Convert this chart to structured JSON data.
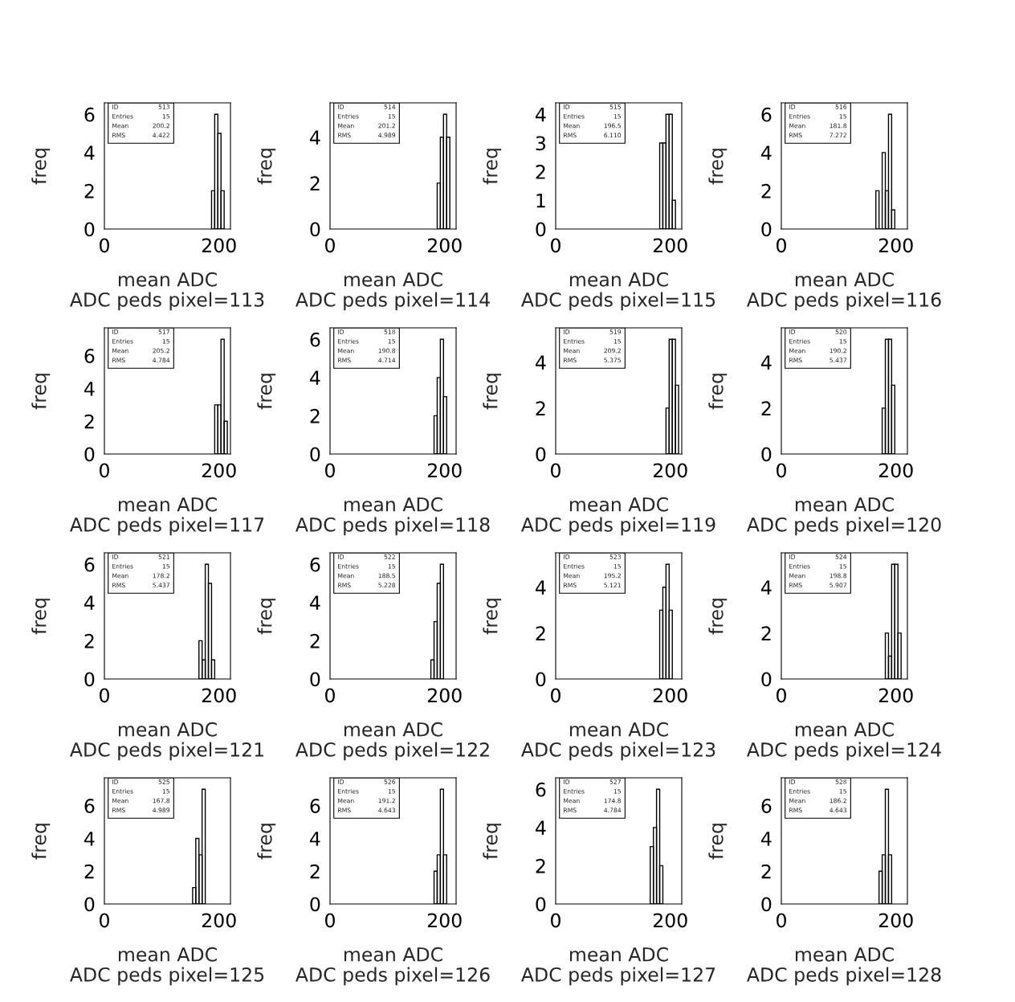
{
  "chart_data": [
    {
      "type": "histogram",
      "title": "ADC peds pixel=113",
      "xlabel": "mean ADC",
      "ylabel": "freq",
      "bins": [
        187,
        192.5,
        198,
        203.5,
        209
      ],
      "values": [
        2,
        6,
        5,
        2
      ],
      "color": "#000000",
      "xlim": [
        0,
        220
      ],
      "xticks": [
        0,
        200
      ],
      "ylim": [
        0,
        6.6
      ],
      "yticks": [
        0,
        2,
        4,
        6
      ],
      "annotations": [
        "ID",
        "513",
        "Entries",
        "15",
        "Mean",
        "200.2",
        "RMS",
        "4.422"
      ]
    },
    {
      "type": "histogram",
      "title": "ADC peds pixel=114",
      "xlabel": "mean ADC",
      "ylabel": "freq",
      "bins": [
        187,
        192.5,
        198,
        203.5,
        209
      ],
      "values": [
        2,
        4,
        5,
        4
      ],
      "color": "#000000",
      "xlim": [
        0,
        220
      ],
      "xticks": [
        0,
        200
      ],
      "ylim": [
        0,
        5.5
      ],
      "yticks": [
        0,
        2,
        4
      ],
      "annotations": [
        "ID",
        "514",
        "Entries",
        "15",
        "Mean",
        "201.2",
        "RMS",
        "4.989"
      ]
    },
    {
      "type": "histogram",
      "title": "ADC peds pixel=115",
      "xlabel": "mean ADC",
      "ylabel": "freq",
      "bins": [
        181.5,
        187,
        192.5,
        198,
        203.5,
        209
      ],
      "values": [
        3,
        3,
        4,
        4,
        1
      ],
      "color": "#000000",
      "xlim": [
        0,
        220
      ],
      "xticks": [
        0,
        200
      ],
      "ylim": [
        0,
        4.4
      ],
      "yticks": [
        0,
        1,
        2,
        3,
        4
      ],
      "annotations": [
        "ID",
        "515",
        "Entries",
        "15",
        "Mean",
        "196.5",
        "RMS",
        "6.110"
      ]
    },
    {
      "type": "histogram",
      "title": "ADC peds pixel=116",
      "xlabel": "mean ADC",
      "ylabel": "freq",
      "bins": [
        165,
        170.5,
        176,
        181.5,
        187,
        192.5,
        198
      ],
      "values": [
        2,
        0,
        4,
        2,
        6,
        1
      ],
      "color": "#000000",
      "xlim": [
        0,
        220
      ],
      "xticks": [
        0,
        200
      ],
      "ylim": [
        0,
        6.6
      ],
      "yticks": [
        0,
        2,
        4,
        6
      ],
      "annotations": [
        "ID",
        "516",
        "Entries",
        "15",
        "Mean",
        "181.8",
        "RMS",
        "7.272"
      ]
    },
    {
      "type": "histogram",
      "title": "ADC peds pixel=117",
      "xlabel": "mean ADC",
      "ylabel": "freq",
      "bins": [
        192.5,
        198,
        203.5,
        209,
        214.5
      ],
      "values": [
        3,
        3,
        7,
        2
      ],
      "color": "#000000",
      "xlim": [
        0,
        220
      ],
      "xticks": [
        0,
        200
      ],
      "ylim": [
        0,
        7.7
      ],
      "yticks": [
        0,
        2,
        4,
        6
      ],
      "annotations": [
        "ID",
        "517",
        "Entries",
        "15",
        "Mean",
        "205.2",
        "RMS",
        "4.784"
      ]
    },
    {
      "type": "histogram",
      "title": "ADC peds pixel=118",
      "xlabel": "mean ADC",
      "ylabel": "freq",
      "bins": [
        181.5,
        187,
        192.5,
        198,
        203.5
      ],
      "values": [
        2,
        4,
        6,
        3
      ],
      "color": "#000000",
      "xlim": [
        0,
        220
      ],
      "xticks": [
        0,
        200
      ],
      "ylim": [
        0,
        6.6
      ],
      "yticks": [
        0,
        2,
        4,
        6
      ],
      "annotations": [
        "ID",
        "518",
        "Entries",
        "15",
        "Mean",
        "190.8",
        "RMS",
        "4.714"
      ]
    },
    {
      "type": "histogram",
      "title": "ADC peds pixel=119",
      "xlabel": "mean ADC",
      "ylabel": "freq",
      "bins": [
        192.5,
        198,
        203.5,
        209,
        214.5
      ],
      "values": [
        2,
        5,
        5,
        3
      ],
      "color": "#000000",
      "xlim": [
        0,
        220
      ],
      "xticks": [
        0,
        200
      ],
      "ylim": [
        0,
        5.5
      ],
      "yticks": [
        0,
        2,
        4
      ],
      "annotations": [
        "ID",
        "519",
        "Entries",
        "15",
        "Mean",
        "209.2",
        "RMS",
        "5.375"
      ]
    },
    {
      "type": "histogram",
      "title": "ADC peds pixel=120",
      "xlabel": "mean ADC",
      "ylabel": "freq",
      "bins": [
        176,
        181.5,
        187,
        192.5,
        198
      ],
      "values": [
        2,
        5,
        5,
        3
      ],
      "color": "#000000",
      "xlim": [
        0,
        220
      ],
      "xticks": [
        0,
        200
      ],
      "ylim": [
        0,
        5.5
      ],
      "yticks": [
        0,
        2,
        4
      ],
      "annotations": [
        "ID",
        "520",
        "Entries",
        "15",
        "Mean",
        "190.2",
        "RMS",
        "5.437"
      ]
    },
    {
      "type": "histogram",
      "title": "ADC peds pixel=121",
      "xlabel": "mean ADC",
      "ylabel": "freq",
      "bins": [
        165,
        170.5,
        176,
        181.5,
        187,
        192.5
      ],
      "values": [
        2,
        1,
        6,
        5,
        1
      ],
      "color": "#000000",
      "xlim": [
        0,
        220
      ],
      "xticks": [
        0,
        200
      ],
      "ylim": [
        0,
        6.6
      ],
      "yticks": [
        0,
        2,
        4,
        6
      ],
      "annotations": [
        "ID",
        "521",
        "Entries",
        "15",
        "Mean",
        "178.2",
        "RMS",
        "5.437"
      ]
    },
    {
      "type": "histogram",
      "title": "ADC peds pixel=122",
      "xlabel": "mean ADC",
      "ylabel": "freq",
      "bins": [
        176,
        181.5,
        187,
        192.5,
        198
      ],
      "values": [
        1,
        3,
        5,
        6
      ],
      "color": "#000000",
      "xlim": [
        0,
        220
      ],
      "xticks": [
        0,
        200
      ],
      "ylim": [
        0,
        6.6
      ],
      "yticks": [
        0,
        2,
        4,
        6
      ],
      "annotations": [
        "ID",
        "522",
        "Entries",
        "15",
        "Mean",
        "188.5",
        "RMS",
        "5.228"
      ]
    },
    {
      "type": "histogram",
      "title": "ADC peds pixel=123",
      "xlabel": "mean ADC",
      "ylabel": "freq",
      "bins": [
        181.5,
        187,
        192.5,
        198,
        203.5
      ],
      "values": [
        3,
        4,
        5,
        3
      ],
      "color": "#000000",
      "xlim": [
        0,
        220
      ],
      "xticks": [
        0,
        200
      ],
      "ylim": [
        0,
        5.5
      ],
      "yticks": [
        0,
        2,
        4
      ],
      "annotations": [
        "ID",
        "523",
        "Entries",
        "15",
        "Mean",
        "195.2",
        "RMS",
        "5.121"
      ]
    },
    {
      "type": "histogram",
      "title": "ADC peds pixel=124",
      "xlabel": "mean ADC",
      "ylabel": "freq",
      "bins": [
        181.5,
        187,
        192.5,
        198,
        203.5,
        209
      ],
      "values": [
        2,
        1,
        5,
        5,
        2
      ],
      "color": "#000000",
      "xlim": [
        0,
        220
      ],
      "xticks": [
        0,
        200
      ],
      "ylim": [
        0,
        5.5
      ],
      "yticks": [
        0,
        2,
        4
      ],
      "annotations": [
        "ID",
        "524",
        "Entries",
        "15",
        "Mean",
        "198.8",
        "RMS",
        "5.907"
      ]
    },
    {
      "type": "histogram",
      "title": "ADC peds pixel=125",
      "xlabel": "mean ADC",
      "ylabel": "freq",
      "bins": [
        154,
        159.5,
        165,
        170.5,
        176
      ],
      "values": [
        1,
        4,
        3,
        7
      ],
      "color": "#000000",
      "xlim": [
        0,
        220
      ],
      "xticks": [
        0,
        200
      ],
      "ylim": [
        0,
        7.7
      ],
      "yticks": [
        0,
        2,
        4,
        6
      ],
      "annotations": [
        "ID",
        "525",
        "Entries",
        "15",
        "Mean",
        "167.8",
        "RMS",
        "4.989"
      ]
    },
    {
      "type": "histogram",
      "title": "ADC peds pixel=126",
      "xlabel": "mean ADC",
      "ylabel": "freq",
      "bins": [
        181.5,
        187,
        192.5,
        198,
        203.5
      ],
      "values": [
        2,
        3,
        7,
        3
      ],
      "color": "#000000",
      "xlim": [
        0,
        220
      ],
      "xticks": [
        0,
        200
      ],
      "ylim": [
        0,
        7.7
      ],
      "yticks": [
        0,
        2,
        4,
        6
      ],
      "annotations": [
        "ID",
        "526",
        "Entries",
        "15",
        "Mean",
        "191.2",
        "RMS",
        "4.643"
      ]
    },
    {
      "type": "histogram",
      "title": "ADC peds pixel=127",
      "xlabel": "mean ADC",
      "ylabel": "freq",
      "bins": [
        165,
        170.5,
        176,
        181.5,
        187
      ],
      "values": [
        3,
        4,
        6,
        2
      ],
      "color": "#000000",
      "xlim": [
        0,
        220
      ],
      "xticks": [
        0,
        200
      ],
      "ylim": [
        0,
        6.6
      ],
      "yticks": [
        0,
        2,
        4,
        6
      ],
      "annotations": [
        "ID",
        "527",
        "Entries",
        "15",
        "Mean",
        "174.8",
        "RMS",
        "4.784"
      ]
    },
    {
      "type": "histogram",
      "title": "ADC peds pixel=128",
      "xlabel": "mean ADC",
      "ylabel": "freq",
      "bins": [
        170.5,
        176,
        181.5,
        187,
        192.5
      ],
      "values": [
        2,
        3,
        7,
        3
      ],
      "color": "#000000",
      "xlim": [
        0,
        220
      ],
      "xticks": [
        0,
        200
      ],
      "ylim": [
        0,
        7.7
      ],
      "yticks": [
        0,
        2,
        4,
        6
      ],
      "annotations": [
        "ID",
        "528",
        "Entries",
        "15",
        "Mean",
        "186.2",
        "RMS",
        "4.643"
      ]
    }
  ]
}
